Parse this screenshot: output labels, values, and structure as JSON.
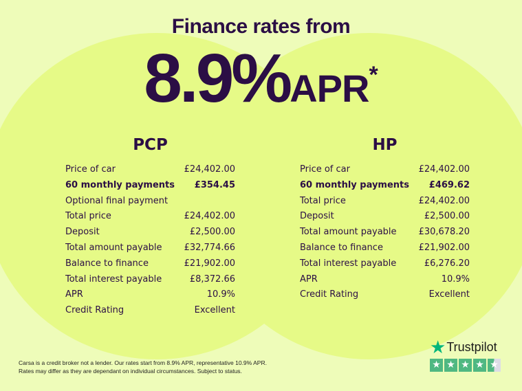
{
  "header": {
    "title": "Finance rates from",
    "rate": "8.9%",
    "apr": "APR",
    "asterisk": "*"
  },
  "pcp": {
    "title": "PCP",
    "rows": [
      {
        "label": "Price of car",
        "value": "£24,402.00",
        "bold": false
      },
      {
        "label": "60 monthly payments",
        "value": "£354.45",
        "bold": true
      },
      {
        "label": "Optional final payment",
        "value": "",
        "bold": false
      },
      {
        "label": "Total price",
        "value": "£24,402.00",
        "bold": false
      },
      {
        "label": "Deposit",
        "value": "£2,500.00",
        "bold": false
      },
      {
        "label": "Total amount payable",
        "value": "£32,774.66",
        "bold": false
      },
      {
        "label": "Balance to finance",
        "value": "£21,902.00",
        "bold": false
      },
      {
        "label": "Total interest payable",
        "value": "£8,372.66",
        "bold": false
      },
      {
        "label": "APR",
        "value": "10.9%",
        "bold": false
      },
      {
        "label": "Credit Rating",
        "value": "Excellent",
        "bold": false
      }
    ]
  },
  "hp": {
    "title": "HP",
    "rows": [
      {
        "label": "Price of car",
        "value": "£24,402.00",
        "bold": false
      },
      {
        "label": "60 monthly payments",
        "value": "£469.62",
        "bold": true
      },
      {
        "label": "Total price",
        "value": "£24,402.00",
        "bold": false
      },
      {
        "label": "Deposit",
        "value": "£2,500.00",
        "bold": false
      },
      {
        "label": "Total amount payable",
        "value": "£30,678.20",
        "bold": false
      },
      {
        "label": "Balance to finance",
        "value": "£21,902.00",
        "bold": false
      },
      {
        "label": "Total interest payable",
        "value": "£6,276.20",
        "bold": false
      },
      {
        "label": "APR",
        "value": "10.9%",
        "bold": false
      },
      {
        "label": "Credit Rating",
        "value": "Excellent",
        "bold": false
      }
    ]
  },
  "disclaimer": {
    "line1": "Carsa is a credit broker not a lender. Our rates start from 8.9% APR, representative 10.9% APR.",
    "line2": "Rates may differ as they are dependant on individual circumstances. Subject to status."
  },
  "trustpilot": {
    "name": "Trustpilot",
    "rating_stars": 4.5,
    "max_stars": 5,
    "color": "#00b67a"
  },
  "colors": {
    "background": "#eefcb9",
    "circle": "#e6fa87",
    "text": "#2b0e45"
  }
}
